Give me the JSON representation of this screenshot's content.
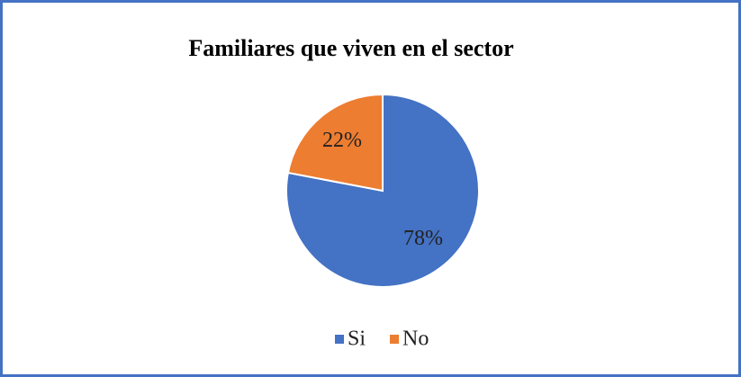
{
  "chart_data": {
    "type": "pie",
    "title": "Familiares que viven en el sector",
    "categories": [
      "Si",
      "No"
    ],
    "values": [
      78,
      22
    ],
    "value_labels": [
      "78%",
      "22%"
    ],
    "colors": [
      "#4472c4",
      "#ed7d31"
    ],
    "legend": "bottom"
  }
}
